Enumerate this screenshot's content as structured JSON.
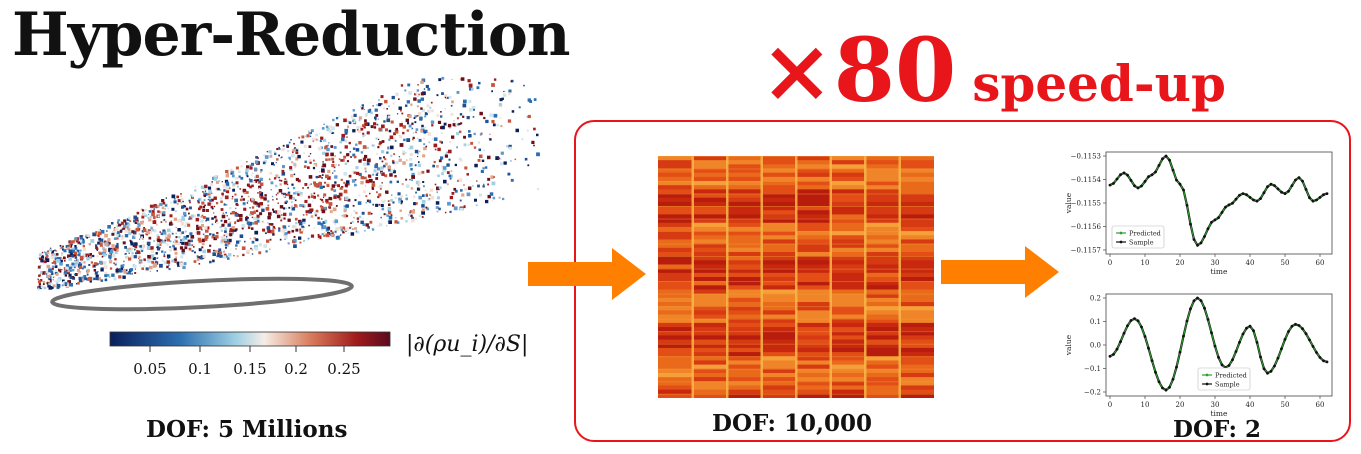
{
  "title": "Hyper-Reduction",
  "speedup": {
    "factor": "×80",
    "label": "speed-up"
  },
  "colorbar": {
    "ticks": [
      "0.05",
      "0.1",
      "0.15",
      "0.2",
      "0.25"
    ],
    "label": "|∂(ρu_i)/∂S|",
    "colors": [
      "#0b1f5c",
      "#2c6fb0",
      "#9fd0e3",
      "#f5ede6",
      "#d87a5a",
      "#a01c1c",
      "#5a0a1e"
    ]
  },
  "dof_labels": {
    "full": "DOF: 5 Millions",
    "intermediate": "DOF: 10,000",
    "reduced": "DOF: 2"
  },
  "accent_colors": {
    "red": "#e8161a",
    "arrow": "#ff8000"
  },
  "plots": [
    {
      "y_label": "value",
      "x_label": "time",
      "yticks": [
        "−0.1153",
        "−0.1154",
        "−0.1155",
        "−0.1156",
        "−0.1157"
      ],
      "xticks": [
        "0",
        "10",
        "20",
        "30",
        "40",
        "50",
        "60"
      ],
      "legend": [
        "Predicted",
        "Sample"
      ]
    },
    {
      "y_label": "value",
      "x_label": "time",
      "yticks": [
        "0.2",
        "0.1",
        "0.0",
        "−0.1",
        "−0.2"
      ],
      "xticks": [
        "0",
        "10",
        "20",
        "30",
        "40",
        "50",
        "60"
      ],
      "legend": [
        "Predicted",
        "Sample"
      ]
    }
  ]
}
